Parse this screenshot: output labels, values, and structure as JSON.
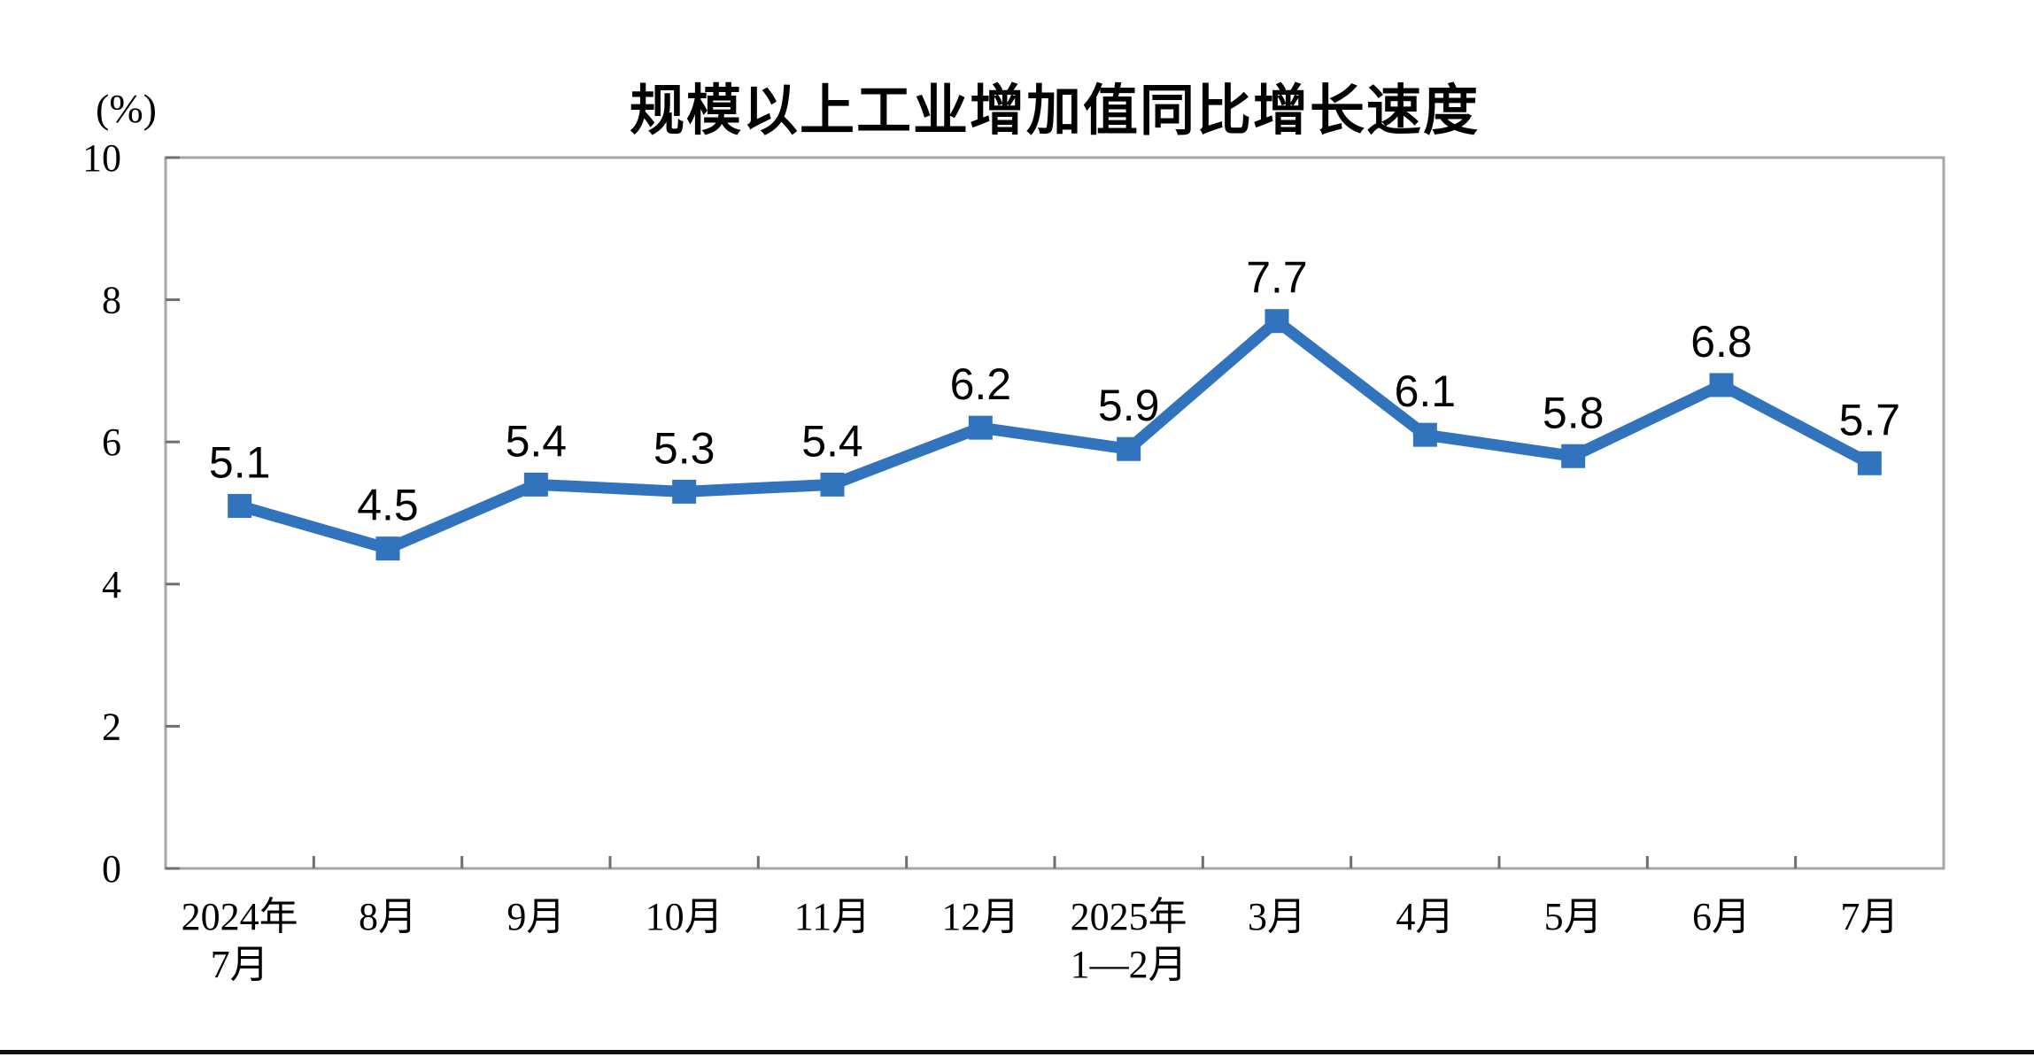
{
  "page": {
    "background": "#FFFFFF",
    "divider_color": "#111111"
  },
  "chart_data": {
    "type": "line",
    "title": "规模以上工业增加值同比增长速度",
    "unit_label": "(%)",
    "categories": [
      [
        "2024年",
        "7月"
      ],
      [
        "8月"
      ],
      [
        "9月"
      ],
      [
        "10月"
      ],
      [
        "11月"
      ],
      [
        "12月"
      ],
      [
        "2025年",
        "1—2月"
      ],
      [
        "3月"
      ],
      [
        "4月"
      ],
      [
        "5月"
      ],
      [
        "6月"
      ],
      [
        "7月"
      ]
    ],
    "values": [
      5.1,
      4.5,
      5.4,
      5.3,
      5.4,
      6.2,
      5.9,
      7.7,
      6.1,
      5.8,
      6.8,
      5.7
    ],
    "ylim": [
      0,
      10
    ],
    "yticks": [
      0,
      2,
      4,
      6,
      8,
      10
    ],
    "grid": false,
    "legend": "none",
    "line_color": "#3173BC",
    "marker": "square",
    "axis_color": "#A6A6A6",
    "tick_color": "#6E6E6E",
    "label_color": "#000000"
  }
}
